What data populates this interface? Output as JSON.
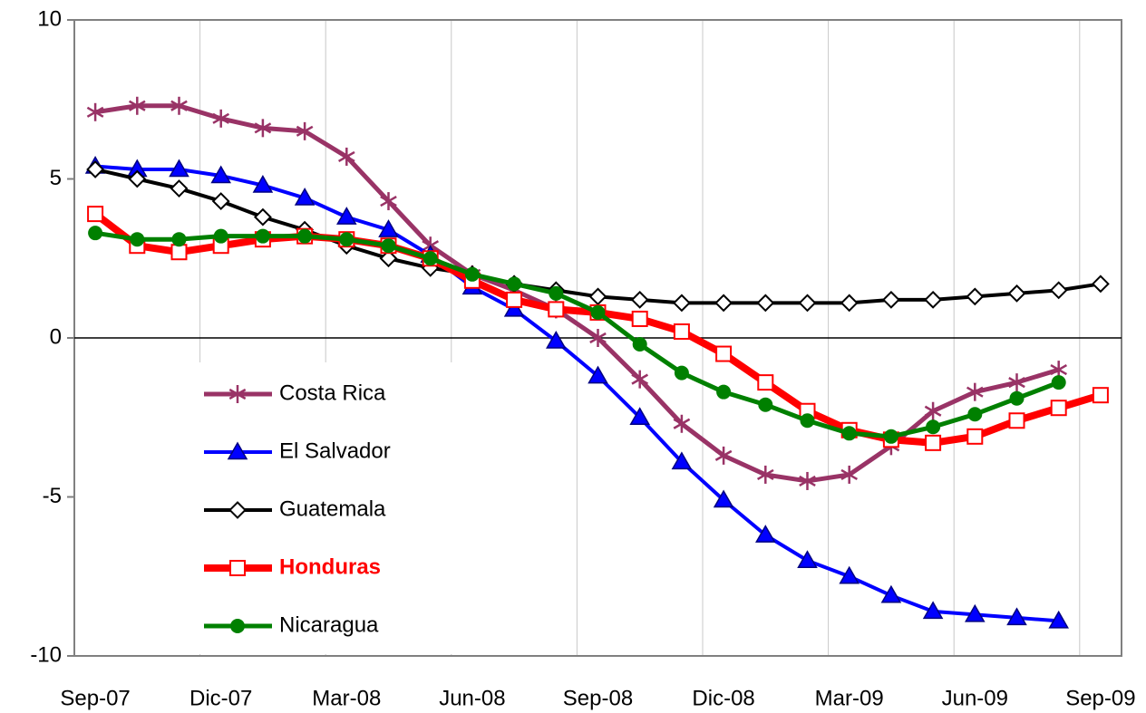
{
  "chart_data": {
    "type": "line",
    "categories": [
      "Sep-07",
      null,
      null,
      "Dic-07",
      null,
      null,
      "Mar-08",
      null,
      null,
      "Jun-08",
      null,
      null,
      "Sep-08",
      null,
      null,
      "Dic-08",
      null,
      null,
      "Mar-09",
      null,
      null,
      "Jun-09",
      null,
      null,
      "Sep-09"
    ],
    "series": [
      {
        "name": "Costa Rica",
        "color": "#993366",
        "marker": "star",
        "line_width": 5,
        "values": [
          7.1,
          7.3,
          7.3,
          6.9,
          6.6,
          6.5,
          5.7,
          4.3,
          2.9,
          2.0,
          1.5,
          0.9,
          0.0,
          -1.3,
          -2.7,
          -3.7,
          -4.3,
          -4.5,
          -4.3,
          -3.4,
          -2.3,
          -1.7,
          -1.4,
          -1.0,
          null
        ]
      },
      {
        "name": "El Salvador",
        "color": "#0000ff",
        "marker": "triangle",
        "line_width": 4,
        "values": [
          5.4,
          5.3,
          5.3,
          5.1,
          4.8,
          4.4,
          3.8,
          3.4,
          2.6,
          1.6,
          0.9,
          -0.1,
          -1.2,
          -2.5,
          -3.9,
          -5.1,
          -6.2,
          -7.0,
          -7.5,
          -8.1,
          -8.6,
          -8.7,
          -8.8,
          -8.9,
          null
        ]
      },
      {
        "name": "Guatemala",
        "color": "#000000",
        "marker": "diamond",
        "line_width": 4,
        "values": [
          5.3,
          5.0,
          4.7,
          4.3,
          3.8,
          3.4,
          2.9,
          2.5,
          2.2,
          2.0,
          1.7,
          1.5,
          1.3,
          1.2,
          1.1,
          1.1,
          1.1,
          1.1,
          1.1,
          1.2,
          1.2,
          1.3,
          1.4,
          1.5,
          1.7
        ]
      },
      {
        "name": "Honduras",
        "color": "#ff0000",
        "marker": "square",
        "line_width": 8,
        "bold": true,
        "values": [
          3.9,
          2.9,
          2.7,
          2.9,
          3.1,
          3.2,
          3.1,
          2.9,
          2.5,
          1.8,
          1.2,
          0.9,
          0.8,
          0.6,
          0.2,
          -0.5,
          -1.4,
          -2.3,
          -2.9,
          -3.2,
          -3.3,
          -3.1,
          -2.6,
          -2.2,
          -1.8
        ]
      },
      {
        "name": "Nicaragua",
        "color": "#008000",
        "marker": "circle",
        "line_width": 5,
        "values": [
          3.3,
          3.1,
          3.1,
          3.2,
          3.2,
          3.2,
          3.1,
          2.9,
          2.5,
          2.0,
          1.7,
          1.4,
          0.8,
          -0.2,
          -1.1,
          -1.7,
          -2.1,
          -2.6,
          -3.0,
          -3.1,
          -2.8,
          -2.4,
          -1.9,
          -1.4,
          null
        ]
      }
    ],
    "ylim": [
      -10,
      10
    ],
    "yticks": [
      -10,
      -5,
      0,
      5,
      10
    ],
    "grid": "x",
    "legend": "lower left"
  }
}
